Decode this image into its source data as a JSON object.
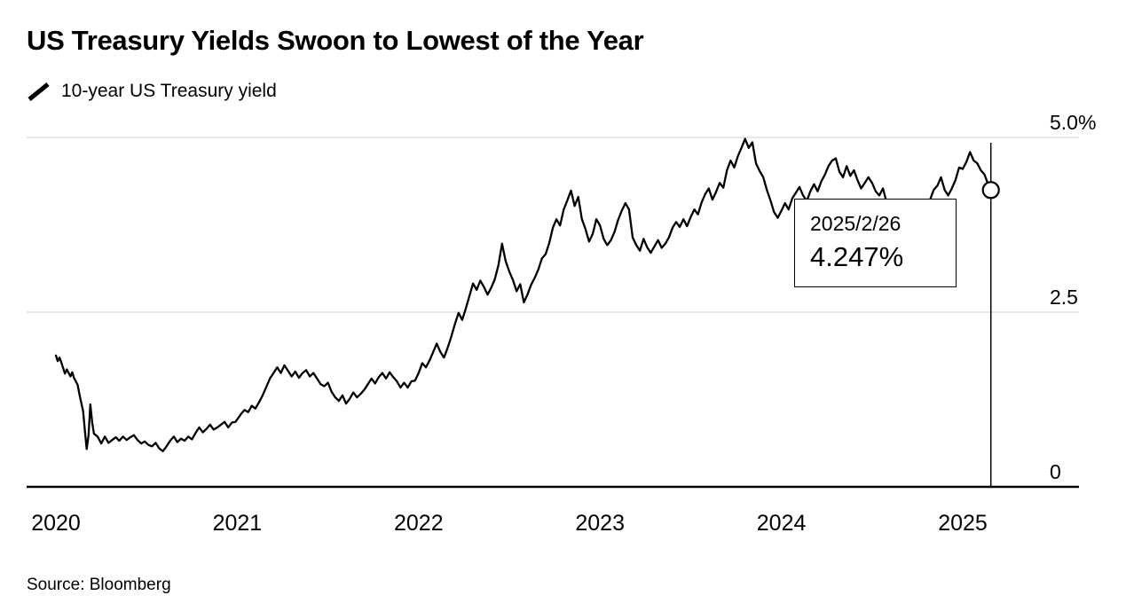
{
  "header": {
    "title": "US Treasury Yields Swoon to Lowest of the Year",
    "legend_label": "10-year US Treasury yield"
  },
  "annotation": {
    "date": "2025/2/26",
    "value": "4.247%"
  },
  "footer": {
    "source": "Source: Bloomberg"
  },
  "colors": {
    "line": "#000000",
    "gridline": "#d9d9d9",
    "background": "#ffffff"
  },
  "chart_data": {
    "type": "line",
    "title": "US Treasury Yields Swoon to Lowest of the Year",
    "series_name": "10-year US Treasury yield",
    "y_unit": "%",
    "ylim": [
      0,
      5.0
    ],
    "xlim": [
      2019.84,
      2025.64
    ],
    "grid": "horizontal",
    "y_ticks": [
      {
        "value": 5.0,
        "label": "5.0%"
      },
      {
        "value": 2.5,
        "label": "2.5"
      },
      {
        "value": 0,
        "label": "0"
      }
    ],
    "x_ticks": [
      {
        "value": 2020,
        "label": "2020"
      },
      {
        "value": 2021,
        "label": "2021"
      },
      {
        "value": 2022,
        "label": "2022"
      },
      {
        "value": 2023,
        "label": "2023"
      },
      {
        "value": 2024,
        "label": "2024"
      },
      {
        "value": 2025,
        "label": "2025"
      }
    ],
    "last_point": {
      "date": "2025/2/26",
      "x": 2025.155,
      "value": 4.247
    },
    "points": [
      [
        2020.0,
        1.88
      ],
      [
        2020.01,
        1.8
      ],
      [
        2020.02,
        1.85
      ],
      [
        2020.03,
        1.78
      ],
      [
        2020.05,
        1.62
      ],
      [
        2020.06,
        1.68
      ],
      [
        2020.08,
        1.58
      ],
      [
        2020.09,
        1.64
      ],
      [
        2020.1,
        1.56
      ],
      [
        2020.12,
        1.46
      ],
      [
        2020.13,
        1.32
      ],
      [
        2020.15,
        1.08
      ],
      [
        2020.16,
        0.8
      ],
      [
        2020.17,
        0.54
      ],
      [
        2020.18,
        0.74
      ],
      [
        2020.19,
        1.18
      ],
      [
        2020.2,
        0.92
      ],
      [
        2020.21,
        0.76
      ],
      [
        2020.23,
        0.72
      ],
      [
        2020.25,
        0.62
      ],
      [
        2020.27,
        0.72
      ],
      [
        2020.29,
        0.63
      ],
      [
        2020.31,
        0.67
      ],
      [
        2020.33,
        0.71
      ],
      [
        2020.35,
        0.66
      ],
      [
        2020.37,
        0.72
      ],
      [
        2020.39,
        0.67
      ],
      [
        2020.41,
        0.71
      ],
      [
        2020.43,
        0.74
      ],
      [
        2020.45,
        0.67
      ],
      [
        2020.47,
        0.62
      ],
      [
        2020.49,
        0.65
      ],
      [
        2020.51,
        0.6
      ],
      [
        2020.53,
        0.58
      ],
      [
        2020.55,
        0.63
      ],
      [
        2020.57,
        0.55
      ],
      [
        2020.59,
        0.51
      ],
      [
        2020.61,
        0.58
      ],
      [
        2020.63,
        0.66
      ],
      [
        2020.65,
        0.72
      ],
      [
        2020.67,
        0.64
      ],
      [
        2020.69,
        0.69
      ],
      [
        2020.71,
        0.66
      ],
      [
        2020.73,
        0.72
      ],
      [
        2020.75,
        0.68
      ],
      [
        2020.77,
        0.77
      ],
      [
        2020.79,
        0.85
      ],
      [
        2020.81,
        0.78
      ],
      [
        2020.83,
        0.83
      ],
      [
        2020.85,
        0.89
      ],
      [
        2020.87,
        0.82
      ],
      [
        2020.89,
        0.85
      ],
      [
        2020.91,
        0.89
      ],
      [
        2020.93,
        0.93
      ],
      [
        2020.95,
        0.85
      ],
      [
        2020.97,
        0.92
      ],
      [
        2020.99,
        0.93
      ],
      [
        2021.02,
        1.04
      ],
      [
        2021.04,
        1.1
      ],
      [
        2021.06,
        1.07
      ],
      [
        2021.08,
        1.16
      ],
      [
        2021.1,
        1.12
      ],
      [
        2021.12,
        1.21
      ],
      [
        2021.14,
        1.31
      ],
      [
        2021.16,
        1.43
      ],
      [
        2021.18,
        1.55
      ],
      [
        2021.2,
        1.63
      ],
      [
        2021.22,
        1.71
      ],
      [
        2021.24,
        1.63
      ],
      [
        2021.26,
        1.74
      ],
      [
        2021.28,
        1.66
      ],
      [
        2021.3,
        1.58
      ],
      [
        2021.32,
        1.65
      ],
      [
        2021.34,
        1.56
      ],
      [
        2021.36,
        1.63
      ],
      [
        2021.38,
        1.67
      ],
      [
        2021.4,
        1.58
      ],
      [
        2021.42,
        1.63
      ],
      [
        2021.44,
        1.55
      ],
      [
        2021.46,
        1.47
      ],
      [
        2021.48,
        1.44
      ],
      [
        2021.5,
        1.49
      ],
      [
        2021.52,
        1.36
      ],
      [
        2021.54,
        1.28
      ],
      [
        2021.56,
        1.23
      ],
      [
        2021.58,
        1.31
      ],
      [
        2021.6,
        1.19
      ],
      [
        2021.62,
        1.26
      ],
      [
        2021.64,
        1.35
      ],
      [
        2021.66,
        1.28
      ],
      [
        2021.68,
        1.33
      ],
      [
        2021.7,
        1.39
      ],
      [
        2021.72,
        1.47
      ],
      [
        2021.74,
        1.55
      ],
      [
        2021.76,
        1.48
      ],
      [
        2021.78,
        1.57
      ],
      [
        2021.8,
        1.63
      ],
      [
        2021.82,
        1.55
      ],
      [
        2021.84,
        1.64
      ],
      [
        2021.86,
        1.57
      ],
      [
        2021.88,
        1.51
      ],
      [
        2021.9,
        1.42
      ],
      [
        2021.92,
        1.49
      ],
      [
        2021.94,
        1.42
      ],
      [
        2021.96,
        1.51
      ],
      [
        2021.98,
        1.52
      ],
      [
        2022.0,
        1.63
      ],
      [
        2022.02,
        1.77
      ],
      [
        2022.04,
        1.71
      ],
      [
        2022.06,
        1.81
      ],
      [
        2022.08,
        1.93
      ],
      [
        2022.1,
        2.05
      ],
      [
        2022.12,
        1.93
      ],
      [
        2022.14,
        1.85
      ],
      [
        2022.16,
        1.99
      ],
      [
        2022.18,
        2.15
      ],
      [
        2022.2,
        2.33
      ],
      [
        2022.22,
        2.49
      ],
      [
        2022.24,
        2.39
      ],
      [
        2022.26,
        2.55
      ],
      [
        2022.28,
        2.73
      ],
      [
        2022.3,
        2.91
      ],
      [
        2022.32,
        2.82
      ],
      [
        2022.34,
        2.95
      ],
      [
        2022.36,
        2.86
      ],
      [
        2022.38,
        2.75
      ],
      [
        2022.4,
        2.85
      ],
      [
        2022.42,
        2.97
      ],
      [
        2022.44,
        3.17
      ],
      [
        2022.46,
        3.48
      ],
      [
        2022.48,
        3.23
      ],
      [
        2022.5,
        3.08
      ],
      [
        2022.52,
        2.96
      ],
      [
        2022.54,
        2.8
      ],
      [
        2022.56,
        2.9
      ],
      [
        2022.58,
        2.64
      ],
      [
        2022.6,
        2.75
      ],
      [
        2022.62,
        2.89
      ],
      [
        2022.64,
        2.99
      ],
      [
        2022.66,
        3.11
      ],
      [
        2022.68,
        3.27
      ],
      [
        2022.7,
        3.33
      ],
      [
        2022.72,
        3.49
      ],
      [
        2022.74,
        3.71
      ],
      [
        2022.76,
        3.83
      ],
      [
        2022.78,
        3.74
      ],
      [
        2022.8,
        3.97
      ],
      [
        2022.82,
        4.1
      ],
      [
        2022.84,
        4.24
      ],
      [
        2022.86,
        4.02
      ],
      [
        2022.88,
        4.15
      ],
      [
        2022.9,
        3.83
      ],
      [
        2022.92,
        3.69
      ],
      [
        2022.94,
        3.51
      ],
      [
        2022.96,
        3.62
      ],
      [
        2022.98,
        3.83
      ],
      [
        2023.0,
        3.74
      ],
      [
        2023.02,
        3.55
      ],
      [
        2023.04,
        3.46
      ],
      [
        2023.06,
        3.53
      ],
      [
        2023.08,
        3.65
      ],
      [
        2023.1,
        3.82
      ],
      [
        2023.12,
        3.95
      ],
      [
        2023.14,
        4.06
      ],
      [
        2023.16,
        3.97
      ],
      [
        2023.18,
        3.57
      ],
      [
        2023.2,
        3.46
      ],
      [
        2023.22,
        3.38
      ],
      [
        2023.24,
        3.55
      ],
      [
        2023.26,
        3.43
      ],
      [
        2023.28,
        3.35
      ],
      [
        2023.3,
        3.44
      ],
      [
        2023.32,
        3.53
      ],
      [
        2023.34,
        3.42
      ],
      [
        2023.36,
        3.48
      ],
      [
        2023.38,
        3.57
      ],
      [
        2023.4,
        3.71
      ],
      [
        2023.42,
        3.79
      ],
      [
        2023.44,
        3.72
      ],
      [
        2023.46,
        3.83
      ],
      [
        2023.48,
        3.73
      ],
      [
        2023.5,
        3.86
      ],
      [
        2023.52,
        3.97
      ],
      [
        2023.54,
        3.9
      ],
      [
        2023.56,
        4.07
      ],
      [
        2023.58,
        4.19
      ],
      [
        2023.6,
        4.27
      ],
      [
        2023.62,
        4.11
      ],
      [
        2023.64,
        4.22
      ],
      [
        2023.66,
        4.35
      ],
      [
        2023.68,
        4.28
      ],
      [
        2023.7,
        4.53
      ],
      [
        2023.72,
        4.67
      ],
      [
        2023.74,
        4.57
      ],
      [
        2023.76,
        4.73
      ],
      [
        2023.78,
        4.85
      ],
      [
        2023.8,
        4.98
      ],
      [
        2023.82,
        4.85
      ],
      [
        2023.84,
        4.93
      ],
      [
        2023.86,
        4.63
      ],
      [
        2023.88,
        4.52
      ],
      [
        2023.9,
        4.43
      ],
      [
        2023.92,
        4.25
      ],
      [
        2023.94,
        4.1
      ],
      [
        2023.96,
        3.93
      ],
      [
        2023.98,
        3.85
      ],
      [
        2024.0,
        3.95
      ],
      [
        2024.02,
        4.06
      ],
      [
        2024.04,
        3.97
      ],
      [
        2024.06,
        4.13
      ],
      [
        2024.08,
        4.21
      ],
      [
        2024.1,
        4.29
      ],
      [
        2024.12,
        4.17
      ],
      [
        2024.14,
        4.09
      ],
      [
        2024.16,
        4.23
      ],
      [
        2024.18,
        4.33
      ],
      [
        2024.2,
        4.23
      ],
      [
        2024.22,
        4.37
      ],
      [
        2024.24,
        4.47
      ],
      [
        2024.26,
        4.59
      ],
      [
        2024.28,
        4.67
      ],
      [
        2024.3,
        4.7
      ],
      [
        2024.32,
        4.51
      ],
      [
        2024.34,
        4.43
      ],
      [
        2024.36,
        4.59
      ],
      [
        2024.38,
        4.45
      ],
      [
        2024.4,
        4.53
      ],
      [
        2024.42,
        4.39
      ],
      [
        2024.44,
        4.27
      ],
      [
        2024.46,
        4.35
      ],
      [
        2024.48,
        4.43
      ],
      [
        2024.5,
        4.35
      ],
      [
        2024.52,
        4.23
      ],
      [
        2024.54,
        4.17
      ],
      [
        2024.56,
        4.27
      ],
      [
        2024.58,
        4.07
      ],
      [
        2024.6,
        3.95
      ],
      [
        2024.62,
        3.87
      ],
      [
        2024.64,
        3.95
      ],
      [
        2024.66,
        3.83
      ],
      [
        2024.68,
        3.71
      ],
      [
        2024.7,
        3.63
      ],
      [
        2024.72,
        3.75
      ],
      [
        2024.74,
        3.81
      ],
      [
        2024.76,
        3.73
      ],
      [
        2024.78,
        3.87
      ],
      [
        2024.8,
        4.03
      ],
      [
        2024.82,
        4.11
      ],
      [
        2024.84,
        4.25
      ],
      [
        2024.86,
        4.31
      ],
      [
        2024.88,
        4.43
      ],
      [
        2024.9,
        4.25
      ],
      [
        2024.92,
        4.17
      ],
      [
        2024.94,
        4.27
      ],
      [
        2024.96,
        4.39
      ],
      [
        2024.98,
        4.57
      ],
      [
        2025.0,
        4.55
      ],
      [
        2025.02,
        4.65
      ],
      [
        2025.04,
        4.79
      ],
      [
        2025.06,
        4.67
      ],
      [
        2025.08,
        4.63
      ],
      [
        2025.1,
        4.53
      ],
      [
        2025.12,
        4.47
      ],
      [
        2025.14,
        4.33
      ],
      [
        2025.155,
        4.247
      ]
    ]
  }
}
